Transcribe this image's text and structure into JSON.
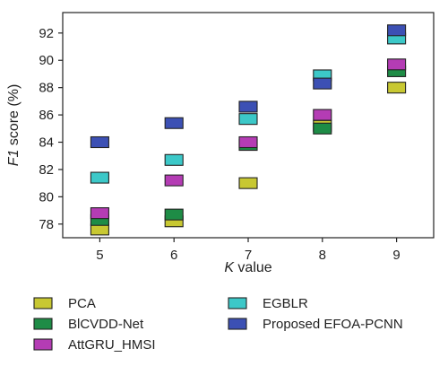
{
  "chart_data": {
    "type": "scatter",
    "title": "",
    "xlabel": {
      "italic": "K",
      "rest": " value"
    },
    "ylabel": {
      "italic": "F1",
      "rest": " score (%)"
    },
    "x": [
      5,
      6,
      7,
      8,
      9
    ],
    "xlim": [
      4.5,
      9.5
    ],
    "ylim": [
      77,
      93.5
    ],
    "yticks": [
      78,
      80,
      82,
      84,
      86,
      88,
      90,
      92
    ],
    "grid": false,
    "marker": "square",
    "legend_placement": "bottom",
    "series": [
      {
        "name": "PCA",
        "color": "#c8c832",
        "values": [
          77.6,
          78.2,
          81.0,
          85.2,
          88.0
        ]
      },
      {
        "name": "BlCVDD-Net",
        "color": "#1e8c46",
        "values": [
          78.3,
          78.7,
          83.8,
          85.0,
          89.2
        ]
      },
      {
        "name": "AttGRU_HMSI",
        "color": "#b43cb4",
        "values": [
          78.8,
          81.2,
          84.0,
          86.0,
          89.7
        ]
      },
      {
        "name": "EGBLR",
        "color": "#3cc8c8",
        "values": [
          81.4,
          82.7,
          85.7,
          88.9,
          91.6
        ]
      },
      {
        "name": "Proposed EFOA-PCNN",
        "color": "#3c50b4",
        "values": [
          84.0,
          85.4,
          86.6,
          88.3,
          92.2
        ]
      }
    ]
  }
}
